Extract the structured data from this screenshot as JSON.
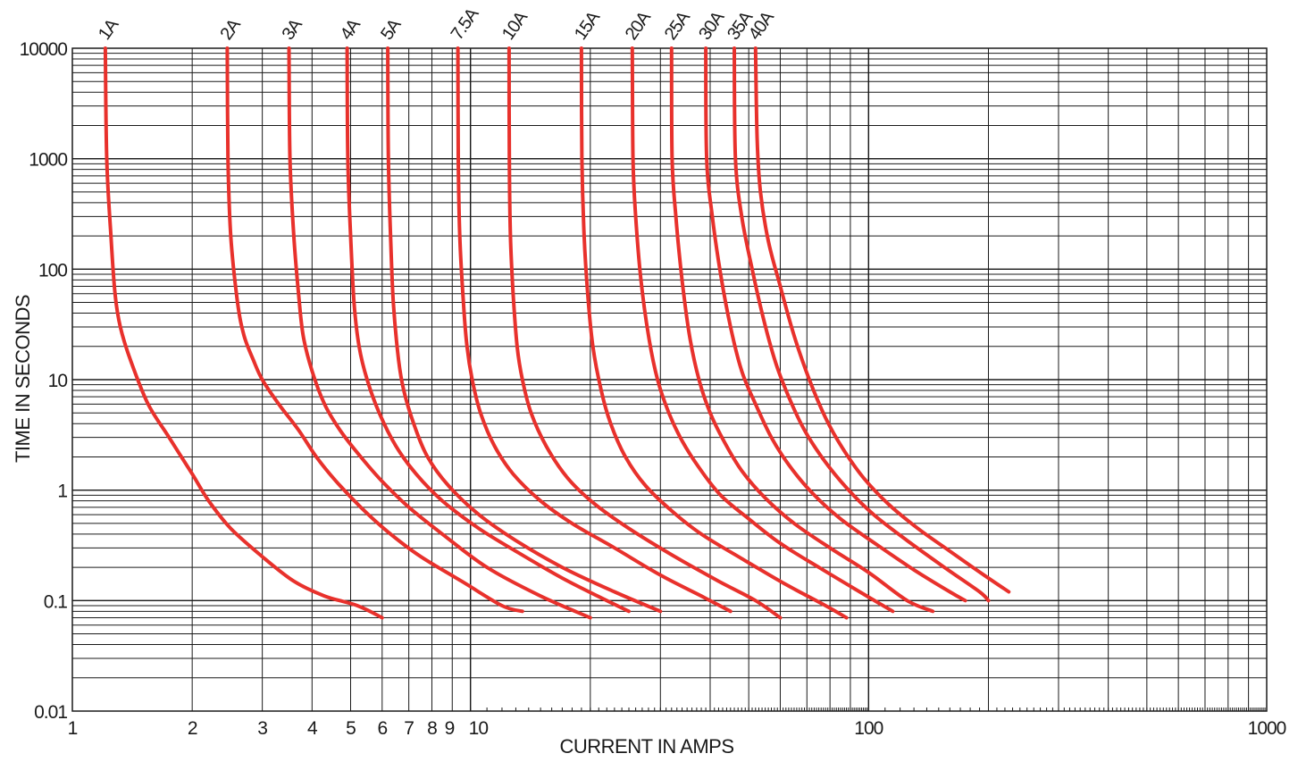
{
  "chart_data": {
    "type": "line",
    "title": "",
    "xlabel": "CURRENT IN AMPS",
    "ylabel": "TIME IN SECONDS",
    "x_scale": "log",
    "y_scale": "log",
    "xlim": [
      1,
      1000
    ],
    "ylim": [
      0.01,
      10000
    ],
    "grid": true,
    "line_color": "#e8312c",
    "grid_color": "#1a1a1a",
    "x_tick_labels": [
      {
        "value": 1,
        "label": "1"
      },
      {
        "value": 2,
        "label": "2"
      },
      {
        "value": 3,
        "label": "3"
      },
      {
        "value": 4,
        "label": "4"
      },
      {
        "value": 5,
        "label": "5"
      },
      {
        "value": 6,
        "label": "6"
      },
      {
        "value": 7,
        "label": "7"
      },
      {
        "value": 8,
        "label": "8"
      },
      {
        "value": 9,
        "label": "9"
      },
      {
        "value": 10,
        "label": "10"
      },
      {
        "value": 100,
        "label": "100"
      },
      {
        "value": 1000,
        "label": "1000"
      }
    ],
    "y_tick_labels": [
      {
        "value": 10000,
        "label": "10000"
      },
      {
        "value": 1000,
        "label": "1000"
      },
      {
        "value": 100,
        "label": "100"
      },
      {
        "value": 10,
        "label": "10"
      },
      {
        "value": 1,
        "label": "1"
      },
      {
        "value": 0.1,
        "label": "0.1"
      },
      {
        "value": 0.01,
        "label": "0.01"
      }
    ],
    "series": [
      {
        "name": "1A",
        "points": [
          [
            1.21,
            10000
          ],
          [
            1.22,
            1000
          ],
          [
            1.25,
            200
          ],
          [
            1.28,
            60
          ],
          [
            1.32,
            30
          ],
          [
            1.4,
            15
          ],
          [
            1.55,
            6
          ],
          [
            1.75,
            3
          ],
          [
            2,
            1.4
          ],
          [
            2.2,
            0.8
          ],
          [
            2.5,
            0.45
          ],
          [
            3,
            0.25
          ],
          [
            3.6,
            0.15
          ],
          [
            4.3,
            0.11
          ],
          [
            5.2,
            0.09
          ],
          [
            6,
            0.07
          ]
        ]
      },
      {
        "name": "2A",
        "points": [
          [
            2.45,
            10000
          ],
          [
            2.46,
            1000
          ],
          [
            2.5,
            200
          ],
          [
            2.6,
            50
          ],
          [
            2.7,
            25
          ],
          [
            2.85,
            15
          ],
          [
            3,
            10
          ],
          [
            3.3,
            6
          ],
          [
            3.7,
            3.5
          ],
          [
            4.1,
            2
          ],
          [
            4.6,
            1.2
          ],
          [
            5.3,
            0.7
          ],
          [
            6.2,
            0.42
          ],
          [
            7.5,
            0.25
          ],
          [
            9.5,
            0.15
          ],
          [
            12,
            0.09
          ],
          [
            13.5,
            0.08
          ]
        ]
      },
      {
        "name": "3A",
        "points": [
          [
            3.5,
            10000
          ],
          [
            3.52,
            1000
          ],
          [
            3.6,
            200
          ],
          [
            3.7,
            60
          ],
          [
            3.8,
            25
          ],
          [
            4,
            12
          ],
          [
            4.3,
            6
          ],
          [
            4.7,
            3.5
          ],
          [
            5.3,
            2
          ],
          [
            6,
            1.2
          ],
          [
            7,
            0.7
          ],
          [
            8.5,
            0.4
          ],
          [
            11,
            0.2
          ],
          [
            15,
            0.11
          ],
          [
            20,
            0.07
          ]
        ]
      },
      {
        "name": "4A",
        "points": [
          [
            4.9,
            10000
          ],
          [
            4.92,
            1000
          ],
          [
            5,
            200
          ],
          [
            5.1,
            50
          ],
          [
            5.25,
            20
          ],
          [
            5.5,
            10
          ],
          [
            5.9,
            5
          ],
          [
            6.5,
            2.5
          ],
          [
            7.3,
            1.4
          ],
          [
            8.5,
            0.8
          ],
          [
            10.5,
            0.45
          ],
          [
            13,
            0.28
          ],
          [
            17,
            0.16
          ],
          [
            22,
            0.1
          ],
          [
            25,
            0.08
          ]
        ]
      },
      {
        "name": "5A",
        "points": [
          [
            6.2,
            10000
          ],
          [
            6.22,
            1000
          ],
          [
            6.3,
            200
          ],
          [
            6.4,
            50
          ],
          [
            6.6,
            15
          ],
          [
            6.8,
            8
          ],
          [
            7.2,
            4
          ],
          [
            7.8,
            2
          ],
          [
            8.8,
            1.1
          ],
          [
            10.5,
            0.6
          ],
          [
            13,
            0.35
          ],
          [
            17,
            0.2
          ],
          [
            23,
            0.12
          ],
          [
            30,
            0.08
          ]
        ]
      },
      {
        "name": "7.5A",
        "points": [
          [
            9.3,
            10000
          ],
          [
            9.32,
            1000
          ],
          [
            9.4,
            200
          ],
          [
            9.6,
            50
          ],
          [
            9.8,
            20
          ],
          [
            10.1,
            10
          ],
          [
            10.6,
            5
          ],
          [
            11.5,
            2.5
          ],
          [
            12.8,
            1.4
          ],
          [
            15,
            0.8
          ],
          [
            18,
            0.5
          ],
          [
            23,
            0.3
          ],
          [
            30,
            0.17
          ],
          [
            38,
            0.11
          ],
          [
            45,
            0.08
          ]
        ]
      },
      {
        "name": "10A",
        "points": [
          [
            12.5,
            10000
          ],
          [
            12.52,
            1000
          ],
          [
            12.6,
            200
          ],
          [
            12.8,
            60
          ],
          [
            13.1,
            20
          ],
          [
            13.5,
            10
          ],
          [
            14.2,
            5
          ],
          [
            15.5,
            2.5
          ],
          [
            17.5,
            1.3
          ],
          [
            20.5,
            0.75
          ],
          [
            25,
            0.45
          ],
          [
            32,
            0.26
          ],
          [
            42,
            0.15
          ],
          [
            52,
            0.1
          ],
          [
            60,
            0.07
          ]
        ]
      },
      {
        "name": "15A",
        "points": [
          [
            19,
            10000
          ],
          [
            19.05,
            1000
          ],
          [
            19.3,
            200
          ],
          [
            19.7,
            60
          ],
          [
            20.3,
            20
          ],
          [
            21.3,
            8
          ],
          [
            22.5,
            4
          ],
          [
            24.5,
            2
          ],
          [
            27.5,
            1.1
          ],
          [
            32,
            0.65
          ],
          [
            38,
            0.4
          ],
          [
            48,
            0.24
          ],
          [
            62,
            0.14
          ],
          [
            78,
            0.09
          ],
          [
            88,
            0.07
          ]
        ]
      },
      {
        "name": "20A",
        "points": [
          [
            25.5,
            10000
          ],
          [
            25.6,
            1000
          ],
          [
            26,
            300
          ],
          [
            26.8,
            80
          ],
          [
            28,
            25
          ],
          [
            29.5,
            10
          ],
          [
            31.5,
            5
          ],
          [
            34,
            2.8
          ],
          [
            37.5,
            1.6
          ],
          [
            42.5,
            0.9
          ],
          [
            50,
            0.55
          ],
          [
            60,
            0.33
          ],
          [
            75,
            0.2
          ],
          [
            95,
            0.12
          ],
          [
            115,
            0.08
          ]
        ]
      },
      {
        "name": "25A",
        "points": [
          [
            32,
            10000
          ],
          [
            32.1,
            1000
          ],
          [
            32.8,
            300
          ],
          [
            34,
            80
          ],
          [
            35.5,
            25
          ],
          [
            37.5,
            10
          ],
          [
            40,
            5
          ],
          [
            43.5,
            2.7
          ],
          [
            48,
            1.5
          ],
          [
            55,
            0.85
          ],
          [
            65,
            0.5
          ],
          [
            80,
            0.3
          ],
          [
            100,
            0.18
          ],
          [
            125,
            0.1
          ],
          [
            145,
            0.08
          ]
        ]
      },
      {
        "name": "30A",
        "points": [
          [
            39,
            10000
          ],
          [
            39.2,
            1000
          ],
          [
            40.5,
            300
          ],
          [
            42.5,
            90
          ],
          [
            45,
            30
          ],
          [
            48,
            12
          ],
          [
            52,
            6
          ],
          [
            57,
            3
          ],
          [
            63,
            1.7
          ],
          [
            72,
            0.95
          ],
          [
            85,
            0.55
          ],
          [
            105,
            0.32
          ],
          [
            130,
            0.19
          ],
          [
            160,
            0.12
          ],
          [
            175,
            0.1
          ]
        ]
      },
      {
        "name": "35A",
        "points": [
          [
            46,
            10000
          ],
          [
            46.3,
            1000
          ],
          [
            48,
            300
          ],
          [
            51,
            100
          ],
          [
            54.5,
            35
          ],
          [
            58.5,
            14
          ],
          [
            63,
            7
          ],
          [
            69,
            3.5
          ],
          [
            77,
            1.9
          ],
          [
            88,
            1.05
          ],
          [
            103,
            0.6
          ],
          [
            125,
            0.35
          ],
          [
            155,
            0.2
          ],
          [
            190,
            0.12
          ],
          [
            200,
            0.1
          ]
        ]
      },
      {
        "name": "40A",
        "points": [
          [
            52,
            10000
          ],
          [
            52.5,
            1500
          ],
          [
            53.5,
            500
          ],
          [
            56,
            180
          ],
          [
            60,
            70
          ],
          [
            65,
            25
          ],
          [
            71,
            10
          ],
          [
            78,
            4.5
          ],
          [
            86,
            2.4
          ],
          [
            97,
            1.3
          ],
          [
            112,
            0.75
          ],
          [
            133,
            0.45
          ],
          [
            160,
            0.28
          ],
          [
            195,
            0.17
          ],
          [
            225,
            0.12
          ]
        ]
      }
    ]
  }
}
